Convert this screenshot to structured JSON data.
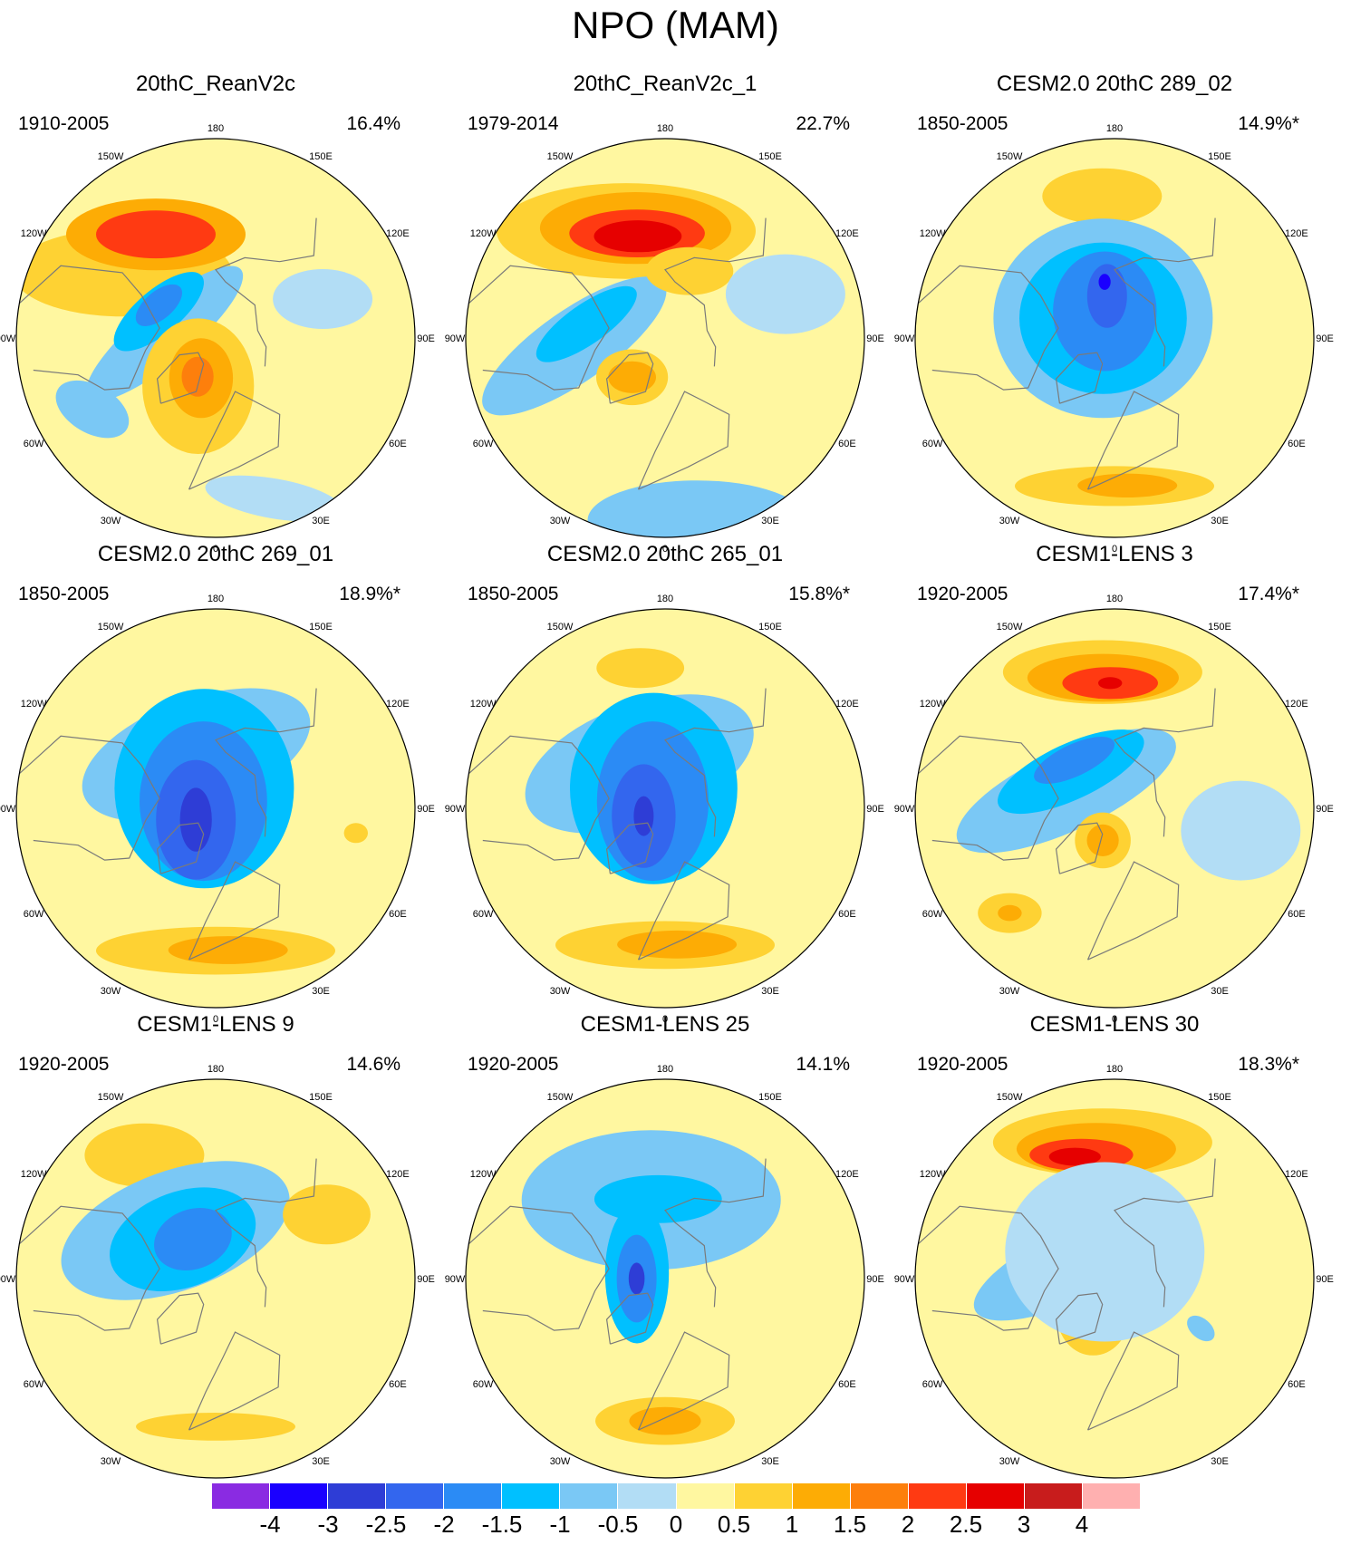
{
  "title": "NPO (MAM)",
  "lon_labels": [
    "180",
    "150E",
    "120E",
    "90E",
    "60E",
    "30E",
    "0",
    "30W",
    "60W",
    "90W",
    "120W",
    "150W"
  ],
  "panels": [
    {
      "title": "20thC_ReanV2c",
      "period": "1910-2005",
      "variance": "16.4%",
      "blobs": [
        {
          "c": [
            -125,
            50
          ],
          "r": [
            0.55,
            0.22
          ],
          "a": 0,
          "v": 0.7
        },
        {
          "c": [
            -150,
            48
          ],
          "r": [
            0.45,
            0.18
          ],
          "a": 0,
          "v": 1.4
        },
        {
          "c": [
            -150,
            48
          ],
          "r": [
            0.3,
            0.12
          ],
          "a": 0,
          "v": 2.0
        },
        {
          "c": [
            -95,
            72
          ],
          "r": [
            0.5,
            0.14
          ],
          "a": -40,
          "v": -0.7
        },
        {
          "c": [
            -115,
            68
          ],
          "r": [
            0.28,
            0.11
          ],
          "a": -40,
          "v": -1.4
        },
        {
          "c": [
            -120,
            67
          ],
          "r": [
            0.14,
            0.07
          ],
          "a": -40,
          "v": -2.0
        },
        {
          "c": [
            -20,
            72
          ],
          "r": [
            0.28,
            0.34
          ],
          "a": 0,
          "v": 0.6
        },
        {
          "c": [
            -20,
            75
          ],
          "r": [
            0.16,
            0.2
          ],
          "a": 0,
          "v": 1.2
        },
        {
          "c": [
            -25,
            75
          ],
          "r": [
            0.08,
            0.1
          ],
          "a": 0,
          "v": 1.8
        },
        {
          "c": [
            -60,
            40
          ],
          "r": [
            0.2,
            0.12
          ],
          "a": 30,
          "v": -0.6
        },
        {
          "c": [
            20,
            30
          ],
          "r": [
            0.35,
            0.1
          ],
          "a": 10,
          "v": -0.5
        },
        {
          "c": [
            110,
            50
          ],
          "r": [
            0.25,
            0.15
          ],
          "a": 0,
          "v": -0.5
        }
      ]
    },
    {
      "title": "20thC_ReanV2c_1",
      "period": "1979-2014",
      "variance": "22.7%",
      "blobs": [
        {
          "c": [
            -160,
            50
          ],
          "r": [
            0.65,
            0.24
          ],
          "a": 0,
          "v": 0.7
        },
        {
          "c": [
            -165,
            50
          ],
          "r": [
            0.48,
            0.18
          ],
          "a": 0,
          "v": 1.4
        },
        {
          "c": [
            -165,
            52
          ],
          "r": [
            0.34,
            0.12
          ],
          "a": 0,
          "v": 2.2
        },
        {
          "c": [
            -165,
            53
          ],
          "r": [
            0.22,
            0.08
          ],
          "a": 0,
          "v": 2.8
        },
        {
          "c": [
            -85,
            58
          ],
          "r": [
            0.55,
            0.18
          ],
          "a": -35,
          "v": -0.7
        },
        {
          "c": [
            -100,
            62
          ],
          "r": [
            0.3,
            0.1
          ],
          "a": -35,
          "v": -1.2
        },
        {
          "c": [
            -40,
            72
          ],
          "r": [
            0.18,
            0.14
          ],
          "a": 0,
          "v": 0.7
        },
        {
          "c": [
            -40,
            72
          ],
          "r": [
            0.12,
            0.08
          ],
          "a": 0,
          "v": 1.2
        },
        {
          "c": [
            160,
            65
          ],
          "r": [
            0.22,
            0.12
          ],
          "a": 0,
          "v": 0.6
        },
        {
          "c": [
            10,
            25
          ],
          "r": [
            0.55,
            0.2
          ],
          "a": 0,
          "v": -0.6
        },
        {
          "c": [
            110,
            45
          ],
          "r": [
            0.3,
            0.2
          ],
          "a": 0,
          "v": -0.5
        }
      ]
    },
    {
      "title": "CESM2.0 20thC 289_02",
      "period": "1850-2005",
      "variance": "14.9%*",
      "blobs": [
        {
          "c": [
            -175,
            40
          ],
          "r": [
            0.3,
            0.14
          ],
          "a": 0,
          "v": 0.6
        },
        {
          "c": [
            -150,
            82
          ],
          "r": [
            0.55,
            0.5
          ],
          "a": 0,
          "v": -0.7
        },
        {
          "c": [
            -150,
            82
          ],
          "r": [
            0.42,
            0.38
          ],
          "a": 0,
          "v": -1.2
        },
        {
          "c": [
            -160,
            80
          ],
          "r": [
            0.26,
            0.3
          ],
          "a": 0,
          "v": -1.8
        },
        {
          "c": [
            -170,
            75
          ],
          "r": [
            0.1,
            0.16
          ],
          "a": 0,
          "v": -2.3
        },
        {
          "c": [
            -170,
            70
          ],
          "r": [
            0.03,
            0.04
          ],
          "a": 0,
          "v": -3.2
        },
        {
          "c": [
            0,
            38
          ],
          "r": [
            0.5,
            0.1
          ],
          "a": 0,
          "v": 0.6
        },
        {
          "c": [
            5,
            38
          ],
          "r": [
            0.25,
            0.06
          ],
          "a": 0,
          "v": 1.1
        }
      ]
    },
    {
      "title": "CESM2.0 20thC 269_01",
      "period": "1850-2005",
      "variance": "18.9%*",
      "blobs": [
        {
          "c": [
            -160,
            70
          ],
          "r": [
            0.6,
            0.28
          ],
          "a": -20,
          "v": -0.7
        },
        {
          "c": [
            -150,
            82
          ],
          "r": [
            0.45,
            0.5
          ],
          "a": 0,
          "v": -1.2
        },
        {
          "c": [
            -120,
            85
          ],
          "r": [
            0.32,
            0.4
          ],
          "a": 0,
          "v": -1.8
        },
        {
          "c": [
            -60,
            82
          ],
          "r": [
            0.2,
            0.3
          ],
          "a": 0,
          "v": -2.3
        },
        {
          "c": [
            -60,
            82
          ],
          "r": [
            0.08,
            0.16
          ],
          "a": 0,
          "v": -2.8
        },
        {
          "c": [
            0,
            40
          ],
          "r": [
            0.6,
            0.12
          ],
          "a": 0,
          "v": 0.6
        },
        {
          "c": [
            5,
            40
          ],
          "r": [
            0.3,
            0.07
          ],
          "a": 0,
          "v": 1.1
        },
        {
          "c": [
            80,
            40
          ],
          "r": [
            0.06,
            0.05
          ],
          "a": 0,
          "v": 0.6
        }
      ]
    },
    {
      "title": "CESM2.0 20thC 265_01",
      "period": "1850-2005",
      "variance": "15.8%*",
      "blobs": [
        {
          "c": [
            -170,
            40
          ],
          "r": [
            0.22,
            0.1
          ],
          "a": 0,
          "v": 0.6
        },
        {
          "c": [
            -150,
            72
          ],
          "r": [
            0.6,
            0.3
          ],
          "a": -20,
          "v": -0.7
        },
        {
          "c": [
            -150,
            82
          ],
          "r": [
            0.42,
            0.48
          ],
          "a": 0,
          "v": -1.2
        },
        {
          "c": [
            -120,
            85
          ],
          "r": [
            0.28,
            0.4
          ],
          "a": 0,
          "v": -1.8
        },
        {
          "c": [
            -70,
            82
          ],
          "r": [
            0.16,
            0.26
          ],
          "a": 0,
          "v": -2.3
        },
        {
          "c": [
            -70,
            82
          ],
          "r": [
            0.05,
            0.1
          ],
          "a": 0,
          "v": -2.8
        },
        {
          "c": [
            0,
            42
          ],
          "r": [
            0.55,
            0.12
          ],
          "a": 0,
          "v": 0.6
        },
        {
          "c": [
            5,
            42
          ],
          "r": [
            0.3,
            0.07
          ],
          "a": 0,
          "v": 1.1
        }
      ]
    },
    {
      "title": "CESM1-LENS 3",
      "period": "1920-2005",
      "variance": "17.4%*",
      "blobs": [
        {
          "c": [
            -175,
            42
          ],
          "r": [
            0.5,
            0.16
          ],
          "a": 0,
          "v": 0.7
        },
        {
          "c": [
            -175,
            44
          ],
          "r": [
            0.38,
            0.12
          ],
          "a": 0,
          "v": 1.4
        },
        {
          "c": [
            -178,
            46
          ],
          "r": [
            0.24,
            0.08
          ],
          "a": 0,
          "v": 2.0
        },
        {
          "c": [
            -178,
            46
          ],
          "r": [
            0.06,
            0.03
          ],
          "a": 0,
          "v": 2.7
        },
        {
          "c": [
            -110,
            72
          ],
          "r": [
            0.6,
            0.2
          ],
          "a": -25,
          "v": -0.7
        },
        {
          "c": [
            -130,
            70
          ],
          "r": [
            0.4,
            0.14
          ],
          "a": -25,
          "v": -1.2
        },
        {
          "c": [
            -140,
            68
          ],
          "r": [
            0.22,
            0.08
          ],
          "a": -25,
          "v": -1.8
        },
        {
          "c": [
            -20,
            78
          ],
          "r": [
            0.14,
            0.14
          ],
          "a": 0,
          "v": 0.7
        },
        {
          "c": [
            -20,
            78
          ],
          "r": [
            0.08,
            0.08
          ],
          "a": 0,
          "v": 1.2
        },
        {
          "c": [
            -45,
            38
          ],
          "r": [
            0.16,
            0.1
          ],
          "a": 0,
          "v": 0.6
        },
        {
          "c": [
            -45,
            38
          ],
          "r": [
            0.06,
            0.04
          ],
          "a": 0,
          "v": 1.2
        },
        {
          "c": [
            80,
            45
          ],
          "r": [
            0.3,
            0.25
          ],
          "a": 0,
          "v": -0.5
        }
      ]
    },
    {
      "title": "CESM1-LENS 9",
      "period": "1920-2005",
      "variance": "14.6%",
      "blobs": [
        {
          "c": [
            -150,
            40
          ],
          "r": [
            0.3,
            0.16
          ],
          "a": 0,
          "v": 0.6
        },
        {
          "c": [
            -140,
            68
          ],
          "r": [
            0.6,
            0.3
          ],
          "a": -20,
          "v": -0.7
        },
        {
          "c": [
            -140,
            72
          ],
          "r": [
            0.38,
            0.24
          ],
          "a": -20,
          "v": -1.2
        },
        {
          "c": [
            -150,
            74
          ],
          "r": [
            0.2,
            0.15
          ],
          "a": -20,
          "v": -1.8
        },
        {
          "c": [
            0,
            38
          ],
          "r": [
            0.4,
            0.07
          ],
          "a": 0,
          "v": 0.6
        },
        {
          "c": [
            120,
            45
          ],
          "r": [
            0.22,
            0.15
          ],
          "a": 0,
          "v": 0.6
        }
      ]
    },
    {
      "title": "CESM1-LENS 25",
      "period": "1920-2005",
      "variance": "14.1%",
      "blobs": [
        {
          "c": [
            -170,
            62
          ],
          "r": [
            0.65,
            0.35
          ],
          "a": 0,
          "v": -0.7
        },
        {
          "c": [
            -175,
            62
          ],
          "r": [
            0.32,
            0.12
          ],
          "a": 0,
          "v": -1.3
        },
        {
          "c": [
            -100,
            80
          ],
          "r": [
            0.16,
            0.35
          ],
          "a": 0,
          "v": -1.3
        },
        {
          "c": [
            -90,
            80
          ],
          "r": [
            0.1,
            0.22
          ],
          "a": 0,
          "v": -1.8
        },
        {
          "c": [
            -90,
            80
          ],
          "r": [
            0.04,
            0.08
          ],
          "a": 0,
          "v": -2.6
        },
        {
          "c": [
            0,
            40
          ],
          "r": [
            0.35,
            0.12
          ],
          "a": 0,
          "v": 0.6
        },
        {
          "c": [
            0,
            40
          ],
          "r": [
            0.18,
            0.07
          ],
          "a": 0,
          "v": 1.1
        }
      ]
    },
    {
      "title": "CESM1-LENS 30",
      "period": "1920-2005",
      "variance": "18.3%*",
      "blobs": [
        {
          "c": [
            -175,
            42
          ],
          "r": [
            0.55,
            0.17
          ],
          "a": 0,
          "v": 0.7
        },
        {
          "c": [
            -172,
            44
          ],
          "r": [
            0.4,
            0.13
          ],
          "a": 0,
          "v": 1.4
        },
        {
          "c": [
            -165,
            45
          ],
          "r": [
            0.26,
            0.08
          ],
          "a": 0,
          "v": 2.0
        },
        {
          "c": [
            -162,
            45
          ],
          "r": [
            0.13,
            0.045
          ],
          "a": 0,
          "v": 2.6
        },
        {
          "c": [
            -110,
            75
          ],
          "r": [
            0.55,
            0.18
          ],
          "a": -25,
          "v": -0.7
        },
        {
          "c": [
            -130,
            72
          ],
          "r": [
            0.34,
            0.12
          ],
          "a": -25,
          "v": -1.2
        },
        {
          "c": [
            -140,
            70
          ],
          "r": [
            0.16,
            0.07
          ],
          "a": -25,
          "v": -1.8
        },
        {
          "c": [
            -30,
            75
          ],
          "r": [
            0.18,
            0.2
          ],
          "a": 0,
          "v": 0.6
        },
        {
          "c": [
            -30,
            75
          ],
          "r": [
            0.1,
            0.12
          ],
          "a": 0,
          "v": 1.1
        },
        {
          "c": [
            -30,
            75
          ],
          "r": [
            0.04,
            0.05
          ],
          "a": 0,
          "v": 1.8
        },
        {
          "c": [
            60,
            55
          ],
          "r": [
            0.08,
            0.05
          ],
          "a": 40,
          "v": -0.6
        },
        {
          "c": [
            -160,
            80
          ],
          "r": [
            0.5,
            0.45
          ],
          "a": 0,
          "v": -0.5
        }
      ]
    }
  ],
  "colorbar": {
    "colors": [
      "#8a2be2",
      "#1a00ff",
      "#2e3dd6",
      "#3366ee",
      "#2b8bf5",
      "#00c0ff",
      "#7ac8f5",
      "#b2ddf5",
      "#fff7a0",
      "#fed233",
      "#fdac05",
      "#fd7f0c",
      "#ff3a12",
      "#e60000",
      "#c81c1c",
      "#ffb0b0"
    ],
    "labels": [
      "-4",
      "-3",
      "-2.5",
      "-2",
      "-1.5",
      "-1",
      "-0.5",
      "0",
      "0.5",
      "1",
      "1.5",
      "2",
      "2.5",
      "3",
      "4"
    ]
  }
}
